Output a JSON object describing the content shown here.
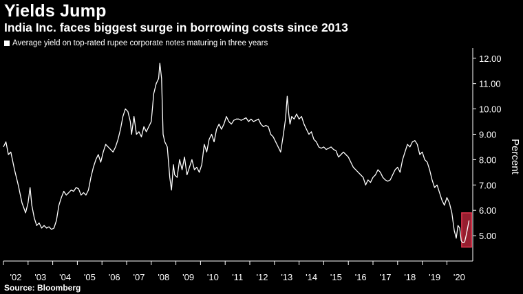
{
  "title": "Yields Jump",
  "subtitle": "India Inc. faces biggest surge in borrowing costs since 2013",
  "source": "Source: Bloomberg",
  "colors": {
    "background": "#000000",
    "line": "#ffffff",
    "axis": "#ffffff",
    "highlight": "#e0364f",
    "highlight_fill": "#c8283f"
  },
  "chart_data": {
    "type": "line",
    "title": "Yields Jump",
    "subtitle": "India Inc. faces biggest surge in borrowing costs since 2013",
    "ylabel": "Percent",
    "xlabel": "",
    "legend": "top-left",
    "grid": false,
    "xlim": [
      2002.0,
      2021.05
    ],
    "ylim": [
      4.0,
      12.4
    ],
    "y_ticks": [
      5.0,
      6.0,
      7.0,
      8.0,
      9.0,
      10.0,
      11.0,
      12.0
    ],
    "y_tick_labels": [
      "5.00",
      "6.00",
      "7.00",
      "8.00",
      "9.00",
      "10.00",
      "11.00",
      "12.00"
    ],
    "x_ticks": [
      2002,
      2003,
      2004,
      2005,
      2006,
      2007,
      2008,
      2009,
      2010,
      2011,
      2012,
      2013,
      2014,
      2015,
      2016,
      2017,
      2018,
      2019,
      2020
    ],
    "x_tick_labels": [
      "'02",
      "'03",
      "'04",
      "'05",
      "'06",
      "'07",
      "'08",
      "'09",
      "'10",
      "'11",
      "'12",
      "'13",
      "'14",
      "'15",
      "'16",
      "'17",
      "'18",
      "'19",
      "'20"
    ],
    "series": [
      {
        "name": "Average yield on top-rated rupee corporate notes maturing in three years",
        "points": [
          [
            2002.0,
            8.5
          ],
          [
            2002.1,
            8.7
          ],
          [
            2002.2,
            8.2
          ],
          [
            2002.3,
            8.3
          ],
          [
            2002.45,
            7.6
          ],
          [
            2002.6,
            7.0
          ],
          [
            2002.75,
            6.3
          ],
          [
            2002.9,
            5.9
          ],
          [
            2003.0,
            6.3
          ],
          [
            2003.08,
            6.9
          ],
          [
            2003.15,
            6.2
          ],
          [
            2003.25,
            5.7
          ],
          [
            2003.35,
            5.4
          ],
          [
            2003.45,
            5.5
          ],
          [
            2003.55,
            5.3
          ],
          [
            2003.65,
            5.4
          ],
          [
            2003.75,
            5.3
          ],
          [
            2003.85,
            5.35
          ],
          [
            2003.95,
            5.25
          ],
          [
            2004.05,
            5.3
          ],
          [
            2004.15,
            5.6
          ],
          [
            2004.25,
            6.2
          ],
          [
            2004.35,
            6.5
          ],
          [
            2004.45,
            6.75
          ],
          [
            2004.55,
            6.6
          ],
          [
            2004.65,
            6.7
          ],
          [
            2004.75,
            6.8
          ],
          [
            2004.85,
            6.75
          ],
          [
            2004.95,
            6.9
          ],
          [
            2005.05,
            6.85
          ],
          [
            2005.15,
            6.6
          ],
          [
            2005.25,
            6.7
          ],
          [
            2005.35,
            6.6
          ],
          [
            2005.45,
            6.8
          ],
          [
            2005.55,
            7.3
          ],
          [
            2005.65,
            7.7
          ],
          [
            2005.75,
            8.0
          ],
          [
            2005.85,
            8.2
          ],
          [
            2005.95,
            7.9
          ],
          [
            2006.05,
            8.3
          ],
          [
            2006.15,
            8.6
          ],
          [
            2006.25,
            8.5
          ],
          [
            2006.35,
            8.4
          ],
          [
            2006.45,
            8.3
          ],
          [
            2006.55,
            8.5
          ],
          [
            2006.65,
            8.8
          ],
          [
            2006.75,
            9.2
          ],
          [
            2006.85,
            9.7
          ],
          [
            2006.95,
            10.0
          ],
          [
            2007.05,
            9.9
          ],
          [
            2007.15,
            9.5
          ],
          [
            2007.2,
            9.0
          ],
          [
            2007.3,
            9.7
          ],
          [
            2007.4,
            9.0
          ],
          [
            2007.5,
            9.1
          ],
          [
            2007.6,
            8.9
          ],
          [
            2007.7,
            9.3
          ],
          [
            2007.8,
            9.1
          ],
          [
            2007.9,
            9.3
          ],
          [
            2008.0,
            9.5
          ],
          [
            2008.1,
            10.6
          ],
          [
            2008.2,
            11.0
          ],
          [
            2008.3,
            11.2
          ],
          [
            2008.35,
            11.8
          ],
          [
            2008.42,
            11.2
          ],
          [
            2008.48,
            9.0
          ],
          [
            2008.55,
            8.7
          ],
          [
            2008.65,
            8.5
          ],
          [
            2008.75,
            7.3
          ],
          [
            2008.82,
            6.8
          ],
          [
            2008.9,
            7.8
          ],
          [
            2008.95,
            7.4
          ],
          [
            2009.05,
            7.3
          ],
          [
            2009.15,
            8.0
          ],
          [
            2009.25,
            7.6
          ],
          [
            2009.35,
            8.1
          ],
          [
            2009.45,
            7.4
          ],
          [
            2009.55,
            7.7
          ],
          [
            2009.65,
            8.0
          ],
          [
            2009.75,
            7.6
          ],
          [
            2009.85,
            7.7
          ],
          [
            2009.95,
            7.5
          ],
          [
            2010.05,
            7.8
          ],
          [
            2010.15,
            8.6
          ],
          [
            2010.25,
            8.3
          ],
          [
            2010.35,
            8.8
          ],
          [
            2010.45,
            9.0
          ],
          [
            2010.55,
            8.7
          ],
          [
            2010.65,
            9.2
          ],
          [
            2010.75,
            9.4
          ],
          [
            2010.85,
            9.2
          ],
          [
            2010.95,
            9.4
          ],
          [
            2011.05,
            9.7
          ],
          [
            2011.15,
            9.5
          ],
          [
            2011.25,
            9.4
          ],
          [
            2011.35,
            9.55
          ],
          [
            2011.45,
            9.6
          ],
          [
            2011.55,
            9.6
          ],
          [
            2011.65,
            9.55
          ],
          [
            2011.75,
            9.6
          ],
          [
            2011.85,
            9.65
          ],
          [
            2011.95,
            9.5
          ],
          [
            2012.05,
            9.6
          ],
          [
            2012.15,
            9.5
          ],
          [
            2012.25,
            9.55
          ],
          [
            2012.35,
            9.6
          ],
          [
            2012.45,
            9.4
          ],
          [
            2012.55,
            9.3
          ],
          [
            2012.65,
            9.35
          ],
          [
            2012.75,
            9.3
          ],
          [
            2012.85,
            9.0
          ],
          [
            2012.95,
            8.9
          ],
          [
            2013.05,
            8.7
          ],
          [
            2013.15,
            8.5
          ],
          [
            2013.25,
            8.3
          ],
          [
            2013.35,
            8.9
          ],
          [
            2013.45,
            9.6
          ],
          [
            2013.52,
            10.5
          ],
          [
            2013.58,
            9.8
          ],
          [
            2013.63,
            9.4
          ],
          [
            2013.7,
            9.7
          ],
          [
            2013.8,
            9.6
          ],
          [
            2013.9,
            9.8
          ],
          [
            2014.0,
            9.6
          ],
          [
            2014.1,
            9.7
          ],
          [
            2014.2,
            9.4
          ],
          [
            2014.3,
            9.2
          ],
          [
            2014.4,
            9.0
          ],
          [
            2014.5,
            9.1
          ],
          [
            2014.6,
            8.8
          ],
          [
            2014.7,
            8.7
          ],
          [
            2014.8,
            8.5
          ],
          [
            2014.9,
            8.45
          ],
          [
            2015.0,
            8.5
          ],
          [
            2015.1,
            8.4
          ],
          [
            2015.2,
            8.45
          ],
          [
            2015.3,
            8.5
          ],
          [
            2015.4,
            8.4
          ],
          [
            2015.5,
            8.35
          ],
          [
            2015.6,
            8.1
          ],
          [
            2015.7,
            8.2
          ],
          [
            2015.8,
            8.3
          ],
          [
            2015.9,
            8.2
          ],
          [
            2016.0,
            8.1
          ],
          [
            2016.1,
            7.9
          ],
          [
            2016.2,
            7.7
          ],
          [
            2016.3,
            7.6
          ],
          [
            2016.4,
            7.5
          ],
          [
            2016.5,
            7.4
          ],
          [
            2016.6,
            7.3
          ],
          [
            2016.7,
            7.0
          ],
          [
            2016.8,
            7.2
          ],
          [
            2016.9,
            7.1
          ],
          [
            2017.0,
            7.3
          ],
          [
            2017.1,
            7.4
          ],
          [
            2017.2,
            7.6
          ],
          [
            2017.3,
            7.5
          ],
          [
            2017.4,
            7.3
          ],
          [
            2017.5,
            7.2
          ],
          [
            2017.6,
            7.15
          ],
          [
            2017.7,
            7.2
          ],
          [
            2017.8,
            7.4
          ],
          [
            2017.9,
            7.6
          ],
          [
            2018.0,
            7.7
          ],
          [
            2018.1,
            7.5
          ],
          [
            2018.2,
            8.0
          ],
          [
            2018.3,
            8.3
          ],
          [
            2018.4,
            8.6
          ],
          [
            2018.5,
            8.5
          ],
          [
            2018.6,
            8.7
          ],
          [
            2018.7,
            8.75
          ],
          [
            2018.8,
            8.6
          ],
          [
            2018.9,
            8.2
          ],
          [
            2019.0,
            8.3
          ],
          [
            2019.1,
            8.0
          ],
          [
            2019.2,
            7.9
          ],
          [
            2019.3,
            7.6
          ],
          [
            2019.4,
            7.2
          ],
          [
            2019.5,
            6.9
          ],
          [
            2019.6,
            7.0
          ],
          [
            2019.7,
            6.7
          ],
          [
            2019.8,
            6.4
          ],
          [
            2019.9,
            6.2
          ],
          [
            2020.0,
            6.5
          ],
          [
            2020.1,
            6.3
          ],
          [
            2020.2,
            5.9
          ],
          [
            2020.3,
            5.2
          ],
          [
            2020.38,
            4.9
          ],
          [
            2020.45,
            5.4
          ],
          [
            2020.52,
            5.3
          ],
          [
            2020.58,
            4.8
          ],
          [
            2020.65,
            4.72
          ],
          [
            2020.72,
            4.75
          ],
          [
            2020.78,
            5.0
          ],
          [
            2020.84,
            5.3
          ],
          [
            2020.9,
            5.6
          ]
        ]
      }
    ],
    "annotations": [
      {
        "type": "highlight-box",
        "x_range": [
          2020.6,
          2021.0
        ],
        "y_range": [
          4.55,
          5.9
        ]
      }
    ]
  }
}
